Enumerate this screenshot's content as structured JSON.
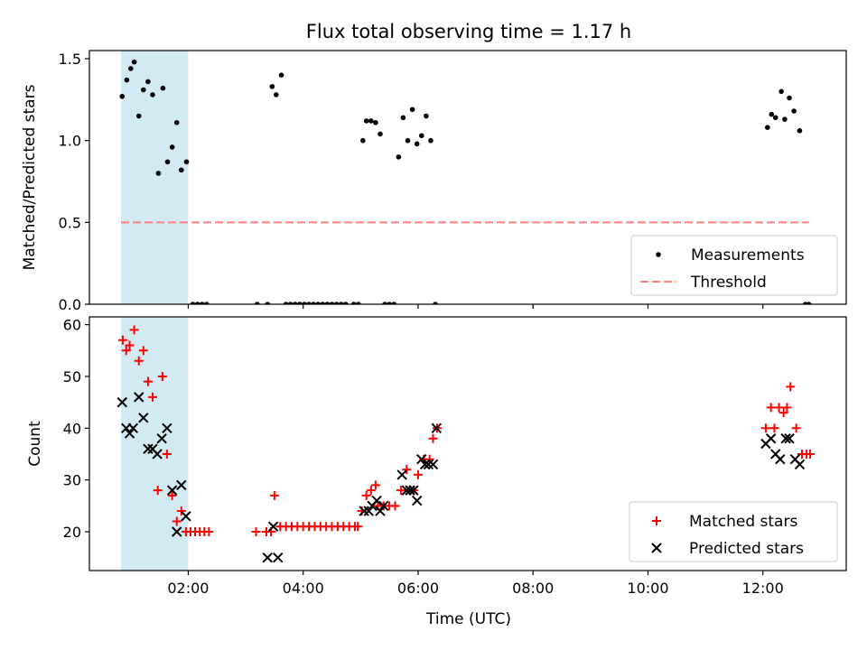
{
  "chart_data": {
    "title": "Flux total observing time = 1.17 h",
    "xlabel": "Time (UTC)",
    "x_tick_labels": [
      "02:00",
      "04:00",
      "06:00",
      "08:00",
      "10:00",
      "12:00"
    ],
    "colors": {
      "measurements": "#000000",
      "threshold": "#ff7f7f",
      "highlight": "#add8e6",
      "matched": "#ff0000",
      "predicted": "#000000"
    },
    "panels": [
      {
        "type": "scatter",
        "ylabel": "Matched/Predicted stars",
        "xlim": [
          0.28,
          13.45
        ],
        "ylim": [
          0,
          1.55
        ],
        "y_ticks": [
          0.0,
          0.5,
          1.0,
          1.5
        ],
        "y_tick_labels": [
          "0.0",
          "0.5",
          "1.0",
          "1.5"
        ],
        "highlight_span_hours": [
          0.83,
          2.0
        ],
        "threshold": {
          "y": 0.5,
          "x_range_hours": [
            0.83,
            12.8
          ]
        },
        "legend": [
          {
            "key": "measurements",
            "label": "Measurements"
          },
          {
            "key": "threshold",
            "label": "Threshold"
          }
        ],
        "series": [
          {
            "name": "Measurements",
            "x_hours": [
              0.85,
              0.93,
              1.0,
              1.06,
              1.14,
              1.22,
              1.3,
              1.38,
              1.48,
              1.56,
              1.64,
              1.72,
              1.8,
              1.88,
              1.97,
              2.08,
              2.16,
              2.24,
              2.32,
              3.2,
              3.38,
              3.46,
              3.53,
              3.62,
              3.7,
              3.78,
              3.86,
              3.94,
              4.02,
              4.1,
              4.18,
              4.26,
              4.34,
              4.42,
              4.5,
              4.58,
              4.66,
              4.74,
              4.88,
              4.96,
              5.04,
              5.1,
              5.18,
              5.26,
              5.34,
              5.42,
              5.5,
              5.58,
              5.66,
              5.74,
              5.82,
              5.9,
              5.98,
              6.06,
              6.14,
              6.22,
              6.3,
              12.08,
              12.15,
              12.22,
              12.32,
              12.38,
              12.46,
              12.54,
              12.64,
              12.74,
              12.8
            ],
            "y": [
              1.27,
              1.37,
              1.44,
              1.48,
              1.15,
              1.31,
              1.36,
              1.28,
              0.8,
              1.32,
              0.87,
              0.96,
              1.11,
              0.82,
              0.87,
              0,
              0,
              0,
              0,
              0,
              0,
              1.33,
              1.28,
              1.4,
              0,
              0,
              0,
              0,
              0,
              0,
              0,
              0,
              0,
              0,
              0,
              0,
              0,
              0,
              0,
              0,
              1.0,
              1.12,
              1.12,
              1.11,
              1.04,
              0,
              0,
              0,
              0.9,
              1.14,
              1.0,
              1.19,
              0.98,
              1.03,
              1.15,
              1.0,
              0,
              1.08,
              1.16,
              1.14,
              1.3,
              1.13,
              1.26,
              1.18,
              1.06,
              0,
              0
            ]
          }
        ]
      },
      {
        "type": "scatter",
        "ylabel": "Count",
        "xlim": [
          0.28,
          13.45
        ],
        "ylim": [
          12.5,
          61.5
        ],
        "y_ticks": [
          20,
          30,
          40,
          50,
          60
        ],
        "y_tick_labels": [
          "20",
          "30",
          "40",
          "50",
          "60"
        ],
        "highlight_span_hours": [
          0.83,
          2.0
        ],
        "legend": [
          {
            "key": "matched",
            "label": "Matched stars"
          },
          {
            "key": "predicted",
            "label": "Predicted stars"
          }
        ],
        "series": [
          {
            "name": "Matched stars",
            "x_hours": [
              0.86,
              0.92,
              0.98,
              1.06,
              1.14,
              1.22,
              1.3,
              1.38,
              1.47,
              1.55,
              1.63,
              1.72,
              1.8,
              1.88,
              1.96,
              2.04,
              2.12,
              2.2,
              2.28,
              2.36,
              3.18,
              3.36,
              3.44,
              3.5,
              3.6,
              3.7,
              3.8,
              3.9,
              4.0,
              4.1,
              4.2,
              4.3,
              4.4,
              4.5,
              4.6,
              4.7,
              4.8,
              4.9,
              4.95,
              5.02,
              5.1,
              5.18,
              5.26,
              5.3,
              5.4,
              5.5,
              5.6,
              5.7,
              5.8,
              5.92,
              6.0,
              6.1,
              6.2,
              6.26,
              6.33,
              12.05,
              12.14,
              12.2,
              12.28,
              12.36,
              12.42,
              12.48,
              12.58,
              12.68,
              12.76,
              12.82
            ],
            "y": [
              57,
              55,
              56,
              59,
              53,
              55,
              49,
              46,
              28,
              50,
              35,
              27,
              22,
              24,
              20,
              20,
              20,
              20,
              20,
              20,
              20,
              20,
              20,
              27,
              21,
              21,
              21,
              21,
              21,
              21,
              21,
              21,
              21,
              21,
              21,
              21,
              21,
              21,
              21,
              24,
              27,
              28,
              29,
              25,
              25,
              25,
              25,
              28,
              32,
              28,
              31,
              34,
              34,
              38,
              40,
              40,
              44,
              40,
              44,
              43,
              44,
              48,
              40,
              35,
              35,
              35
            ]
          },
          {
            "name": "Predicted stars",
            "x_hours": [
              0.85,
              0.92,
              0.98,
              1.04,
              1.14,
              1.22,
              1.3,
              1.38,
              1.46,
              1.54,
              1.63,
              1.72,
              1.8,
              1.88,
              1.96,
              3.38,
              3.48,
              3.56,
              5.06,
              5.14,
              5.2,
              5.28,
              5.34,
              5.4,
              5.72,
              5.8,
              5.86,
              5.92,
              5.98,
              6.06,
              6.12,
              6.18,
              6.26,
              6.32,
              12.05,
              12.14,
              12.22,
              12.3,
              12.4,
              12.46,
              12.56,
              12.64
            ],
            "y": [
              45,
              40,
              39,
              40,
              46,
              42,
              36,
              36,
              35,
              38,
              40,
              28,
              20,
              29,
              23,
              15,
              21,
              15,
              24,
              24,
              25,
              26,
              24,
              25,
              31,
              28,
              28,
              28,
              26,
              34,
              33,
              33,
              33,
              40,
              37,
              38,
              35,
              34,
              38,
              38,
              34,
              33
            ]
          }
        ]
      }
    ]
  }
}
